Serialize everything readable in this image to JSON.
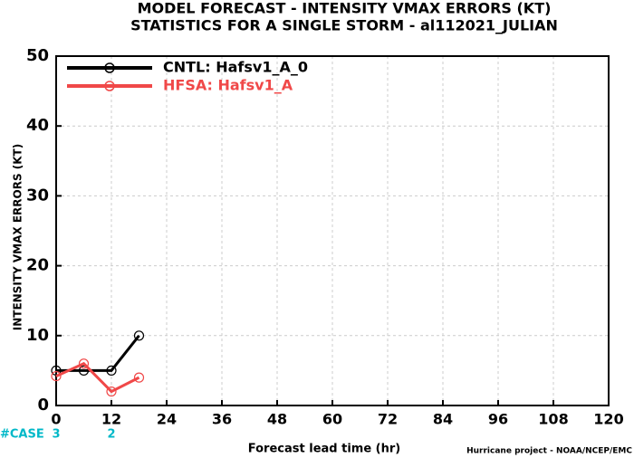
{
  "chart_data": {
    "type": "line",
    "title": "MODEL FORECAST - INTENSITY VMAX ERRORS (KT)",
    "subtitle": "STATISTICS FOR A SINGLE STORM - al112021_JULIAN",
    "x_label": "Forecast lead time (hr)",
    "y_label": "INTENSITY VMAX ERRORS (KT)",
    "footnote": "Hurricane project - NOAA/NCEP/EMC",
    "x": [
      0,
      6,
      12,
      18
    ],
    "series": [
      {
        "name": "CNTL: Hafsv1_A_0",
        "color": "#000000",
        "values": [
          5,
          5,
          5,
          10
        ]
      },
      {
        "name": "HFSA: Hafsv1_A",
        "color": "#f04848",
        "values": [
          4.2,
          6,
          2,
          4
        ]
      }
    ],
    "xlim": [
      0,
      120
    ],
    "xticks": [
      0,
      12,
      24,
      36,
      48,
      60,
      72,
      84,
      96,
      108,
      120
    ],
    "ylim": [
      0,
      50
    ],
    "yticks": [
      0,
      10,
      20,
      30,
      40,
      50
    ],
    "grid": true,
    "legend": "upper-left",
    "case_counts": {
      "label": "#CASE",
      "color": "#00b8c8",
      "x": [
        0,
        12
      ],
      "values": [
        3,
        2
      ]
    }
  }
}
